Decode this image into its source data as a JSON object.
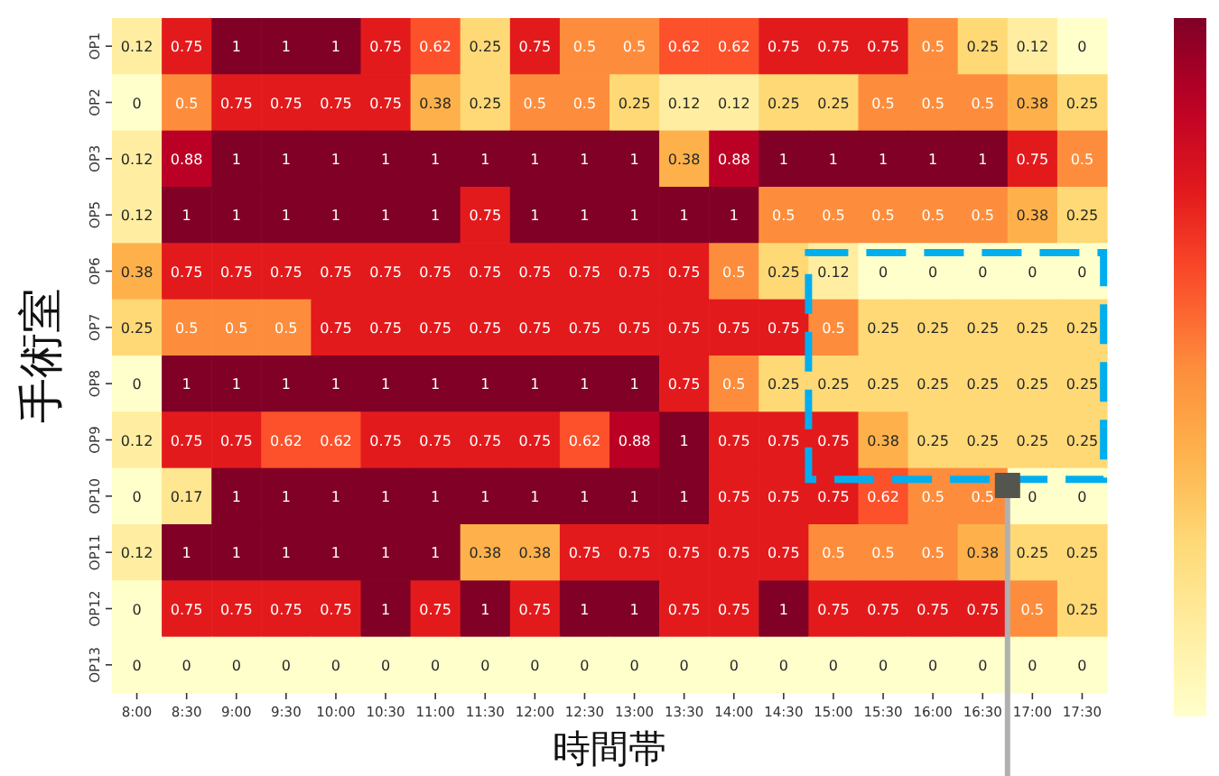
{
  "chart_data": {
    "type": "heatmap",
    "xlabel": "時間帯",
    "ylabel": "手術室",
    "categories": [
      "8:00",
      "8:30",
      "9:00",
      "9:30",
      "10:00",
      "10:30",
      "11:00",
      "11:30",
      "12:00",
      "12:30",
      "13:00",
      "13:30",
      "14:00",
      "14:30",
      "15:00",
      "15:30",
      "16:00",
      "16:30",
      "17:00",
      "17:30"
    ],
    "y_categories": [
      "OP1",
      "OP2",
      "OP3",
      "OP5",
      "OP6",
      "OP7",
      "OP8",
      "OP9",
      "OP10",
      "OP11",
      "OP12",
      "OP13"
    ],
    "cells": [
      [
        0.12,
        0.75,
        1,
        1,
        1,
        0.75,
        0.62,
        0.25,
        0.75,
        0.5,
        0.5,
        0.62,
        0.62,
        0.75,
        0.75,
        0.75,
        0.5,
        0.25,
        0.12,
        0
      ],
      [
        0,
        0.5,
        0.75,
        0.75,
        0.75,
        0.75,
        0.38,
        0.25,
        0.5,
        0.5,
        0.25,
        0.12,
        0.12,
        0.25,
        0.25,
        0.5,
        0.5,
        0.5,
        0.38,
        0.25
      ],
      [
        0.12,
        0.88,
        1,
        1,
        1,
        1,
        1,
        1,
        1,
        1,
        1,
        0.38,
        0.88,
        1,
        1,
        1,
        1,
        1,
        0.75,
        0.5
      ],
      [
        0.12,
        1,
        1,
        1,
        1,
        1,
        1,
        0.75,
        1,
        1,
        1,
        1,
        1,
        0.5,
        0.5,
        0.5,
        0.5,
        0.5,
        0.38,
        0.25
      ],
      [
        0.38,
        0.75,
        0.75,
        0.75,
        0.75,
        0.75,
        0.75,
        0.75,
        0.75,
        0.75,
        0.75,
        0.75,
        0.5,
        0.25,
        0.12,
        0,
        0,
        0,
        0,
        0
      ],
      [
        0.25,
        0.5,
        0.5,
        0.5,
        0.75,
        0.75,
        0.75,
        0.75,
        0.75,
        0.75,
        0.75,
        0.75,
        0.75,
        0.75,
        0.5,
        0.25,
        0.25,
        0.25,
        0.25,
        0.25
      ],
      [
        0,
        1,
        1,
        1,
        1,
        1,
        1,
        1,
        1,
        1,
        1,
        0.75,
        0.5,
        0.25,
        0.25,
        0.25,
        0.25,
        0.25,
        0.25,
        0.25
      ],
      [
        0.12,
        0.75,
        0.75,
        0.62,
        0.62,
        0.75,
        0.75,
        0.75,
        0.75,
        0.62,
        0.88,
        1,
        0.75,
        0.75,
        0.75,
        0.38,
        0.25,
        0.25,
        0.25,
        0.25
      ],
      [
        0,
        0.17,
        1,
        1,
        1,
        1,
        1,
        1,
        1,
        1,
        1,
        1,
        0.75,
        0.75,
        0.75,
        0.62,
        0.5,
        0.5,
        0,
        0
      ],
      [
        0.12,
        1,
        1,
        1,
        1,
        1,
        1,
        0.38,
        0.38,
        0.75,
        0.75,
        0.75,
        0.75,
        0.75,
        0.5,
        0.5,
        0.5,
        0.38,
        0.25,
        0.25
      ],
      [
        0,
        0.75,
        0.75,
        0.75,
        0.75,
        1,
        0.75,
        1,
        0.75,
        1,
        1,
        0.75,
        0.75,
        1,
        0.75,
        0.75,
        0.75,
        0.75,
        0.5,
        0.25
      ],
      [
        0,
        0,
        0,
        0,
        0,
        0,
        0,
        0,
        0,
        0,
        0,
        0,
        0,
        0,
        0,
        0,
        0,
        0,
        0,
        0
      ]
    ],
    "data_labels": true
  }
}
